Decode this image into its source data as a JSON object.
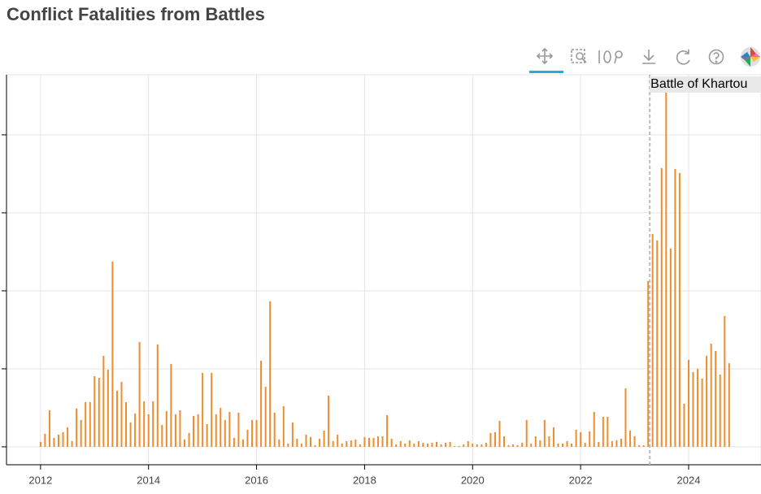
{
  "chart_data": {
    "type": "bar",
    "title": "Conflict Fatalities from Battles",
    "x": [
      2012,
      2012.083,
      2012.167,
      2012.25,
      2012.333,
      2012.417,
      2012.5,
      2012.583,
      2012.667,
      2012.75,
      2012.833,
      2012.917,
      2013,
      2013.083,
      2013.167,
      2013.25,
      2013.333,
      2013.417,
      2013.5,
      2013.583,
      2013.667,
      2013.75,
      2013.833,
      2013.917,
      2014,
      2014.083,
      2014.167,
      2014.25,
      2014.333,
      2014.417,
      2014.5,
      2014.583,
      2014.667,
      2014.75,
      2014.833,
      2014.917,
      2015,
      2015.083,
      2015.167,
      2015.25,
      2015.333,
      2015.417,
      2015.5,
      2015.583,
      2015.667,
      2015.75,
      2015.833,
      2015.917,
      2016,
      2016.083,
      2016.167,
      2016.25,
      2016.333,
      2016.417,
      2016.5,
      2016.583,
      2016.667,
      2016.75,
      2016.833,
      2016.917,
      2017,
      2017.083,
      2017.167,
      2017.25,
      2017.333,
      2017.417,
      2017.5,
      2017.583,
      2017.667,
      2017.75,
      2017.833,
      2017.917,
      2018,
      2018.083,
      2018.167,
      2018.25,
      2018.333,
      2018.417,
      2018.5,
      2018.583,
      2018.667,
      2018.75,
      2018.833,
      2018.917,
      2019,
      2019.083,
      2019.167,
      2019.25,
      2019.333,
      2019.417,
      2019.5,
      2019.583,
      2019.667,
      2019.75,
      2019.833,
      2019.917,
      2020,
      2020.083,
      2020.167,
      2020.25,
      2020.333,
      2020.417,
      2020.5,
      2020.583,
      2020.667,
      2020.75,
      2020.833,
      2020.917,
      2021,
      2021.083,
      2021.167,
      2021.25,
      2021.333,
      2021.417,
      2021.5,
      2021.583,
      2021.667,
      2021.75,
      2021.833,
      2021.917,
      2022,
      2022.083,
      2022.167,
      2022.25,
      2022.333,
      2022.417,
      2022.5,
      2022.583,
      2022.667,
      2022.75,
      2022.833,
      2022.917,
      2023,
      2023.083,
      2023.167,
      2023.25,
      2023.333,
      2023.417,
      2023.5,
      2023.583,
      2023.667,
      2023.75,
      2023.833,
      2023.917,
      2024,
      2024.083,
      2024.167,
      2024.25,
      2024.333,
      2024.417,
      2024.5,
      2024.583,
      2024.667,
      2024.75
    ],
    "values": [
      63,
      167,
      469,
      115,
      156,
      188,
      250,
      73,
      490,
      344,
      573,
      573,
      906,
      885,
      1167,
      990,
      2375,
      719,
      833,
      573,
      313,
      427,
      1344,
      583,
      417,
      583,
      1313,
      281,
      458,
      1063,
      417,
      469,
      94,
      177,
      396,
      417,
      948,
      292,
      948,
      417,
      500,
      344,
      448,
      115,
      438,
      94,
      219,
      344,
      344,
      1104,
      771,
      1865,
      438,
      94,
      521,
      42,
      313,
      104,
      42,
      156,
      125,
      21,
      104,
      208,
      656,
      73,
      156,
      42,
      73,
      83,
      94,
      31,
      125,
      115,
      115,
      135,
      135,
      406,
      104,
      31,
      73,
      42,
      83,
      42,
      73,
      52,
      42,
      52,
      63,
      31,
      52,
      63,
      10,
      10,
      31,
      73,
      42,
      31,
      31,
      52,
      177,
      188,
      333,
      135,
      21,
      31,
      21,
      52,
      344,
      42,
      135,
      83,
      344,
      135,
      250,
      42,
      42,
      73,
      42,
      219,
      188,
      52,
      198,
      448,
      63,
      385,
      385,
      73,
      83,
      104,
      750,
      208,
      135,
      21,
      21,
      2125,
      2729,
      2646,
      3573,
      4552,
      2542,
      3563,
      3510,
      552,
      1115,
      958,
      1000,
      875,
      1167,
      1323,
      1229,
      927,
      1677,
      1073
    ],
    "color": "#ee8d2c",
    "xlim": [
      2011.37,
      2025.34
    ],
    "xticks": [
      2012,
      2014,
      2016,
      2018,
      2020,
      2022,
      2024
    ],
    "ylim": [
      -230,
      4770
    ],
    "yticks": [
      0,
      1000,
      2000,
      3000,
      4000
    ],
    "grid": true,
    "annotation": {
      "x": 2023.28,
      "text": "Battle of Khartou"
    }
  }
}
